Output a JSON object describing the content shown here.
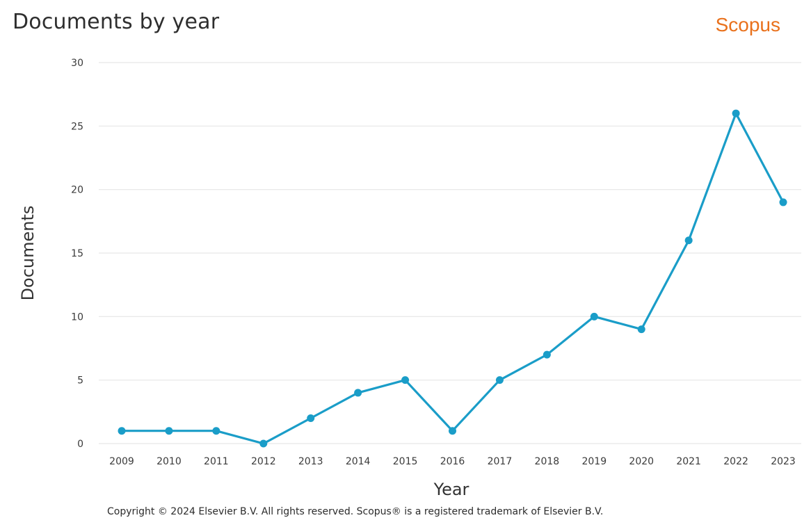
{
  "header": {
    "title": "Documents by year",
    "brand": "Scopus"
  },
  "footer": {
    "copyright": "Copyright © 2024 Elsevier B.V. All rights reserved. Scopus® is a registered trademark of Elsevier B.V."
  },
  "colors": {
    "series": "#1a9dc8",
    "grid": "#e6e6e6",
    "brand": "#e9711c"
  },
  "chart_data": {
    "type": "line",
    "title": "Documents by year",
    "xlabel": "Year",
    "ylabel": "Documents",
    "x": [
      "2009",
      "2010",
      "2011",
      "2012",
      "2013",
      "2014",
      "2015",
      "2016",
      "2017",
      "2018",
      "2019",
      "2020",
      "2021",
      "2022",
      "2023"
    ],
    "series": [
      {
        "values": [
          1,
          1,
          1,
          0,
          2,
          4,
          5,
          1,
          5,
          7,
          10,
          9,
          16,
          26,
          19
        ]
      }
    ],
    "ylim": [
      0,
      30
    ],
    "yticks": [
      0,
      5,
      10,
      15,
      20,
      25,
      30
    ],
    "grid": true,
    "legend": "none"
  }
}
